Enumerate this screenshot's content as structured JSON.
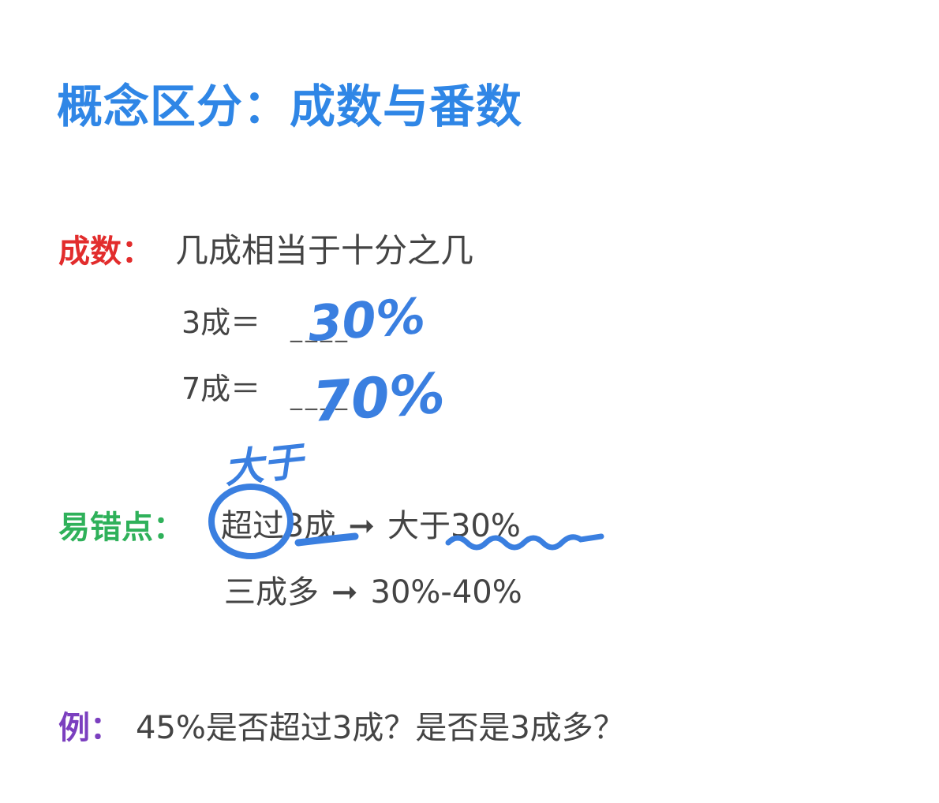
{
  "title": "概念区分：成数与番数",
  "chengshu": {
    "label": "成数：",
    "definition": "几成相当于十分之几",
    "rows": [
      {
        "left": "3成＝",
        "blank": "____",
        "handwritten": "30%"
      },
      {
        "left": "7成＝",
        "blank": "____",
        "handwritten": "70%"
      }
    ]
  },
  "mistakes": {
    "label": "易错点：",
    "rows": [
      {
        "left": "超过3成",
        "arrow": "➞",
        "right": "大于30%"
      },
      {
        "left": "三成多",
        "arrow": "➞",
        "right": "30%-40%"
      }
    ],
    "annotation": "大于"
  },
  "example": {
    "label": "例：",
    "text": "45%是否超过3成？是否是3成多？"
  },
  "colors": {
    "title": "#2f86e6",
    "red_label": "#e22c2c",
    "green_label": "#2fb15a",
    "purple_label": "#7b3fbf",
    "ink": "#3a7fe0"
  }
}
